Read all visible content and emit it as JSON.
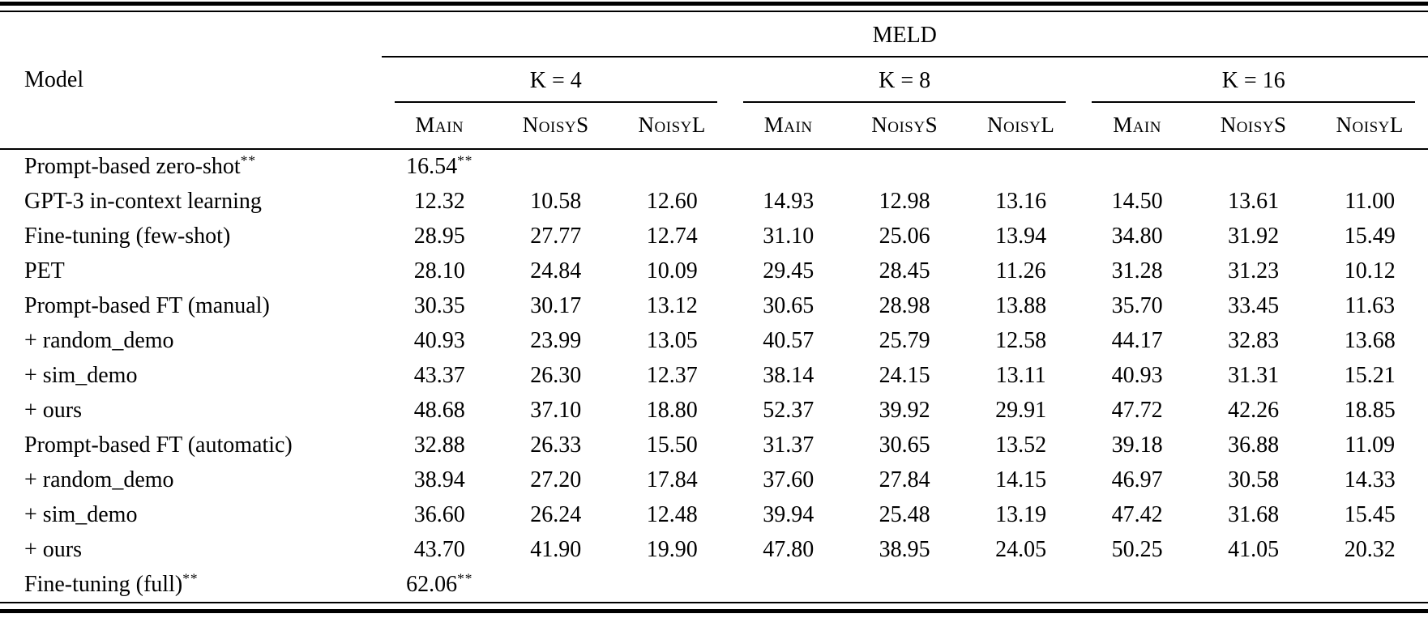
{
  "colors": {
    "background": "#ffffff",
    "text": "#000000",
    "rule": "#000000"
  },
  "table": {
    "dataset": "MELD",
    "model_header": "Model",
    "groups": [
      {
        "label": "K = 4"
      },
      {
        "label": "K = 8"
      },
      {
        "label": "K = 16"
      }
    ],
    "subcolumns": [
      "Main",
      "NoisyS",
      "NoisyL"
    ],
    "rows": [
      {
        "label": "Prompt-based zero-shot**",
        "values": [
          "16.54**",
          "",
          "",
          "",
          "",
          "",
          "",
          "",
          ""
        ]
      },
      {
        "label": "GPT-3 in-context learning",
        "values": [
          "12.32",
          "10.58",
          "12.60",
          "14.93",
          "12.98",
          "13.16",
          "14.50",
          "13.61",
          "11.00"
        ]
      },
      {
        "label": "Fine-tuning (few-shot)",
        "values": [
          "28.95",
          "27.77",
          "12.74",
          "31.10",
          "25.06",
          "13.94",
          "34.80",
          "31.92",
          "15.49"
        ],
        "rule_after": "solid"
      },
      {
        "label": "PET",
        "values": [
          "28.10",
          "24.84",
          "10.09",
          "29.45",
          "28.45",
          "11.26",
          "31.28",
          "31.23",
          "10.12"
        ]
      },
      {
        "label": "Prompt-based FT (manual)",
        "values": [
          "30.35",
          "30.17",
          "13.12",
          "30.65",
          "28.98",
          "13.88",
          "35.70",
          "33.45",
          "11.63"
        ]
      },
      {
        "label": "+ random_demo",
        "values": [
          "40.93",
          "23.99",
          "13.05",
          "40.57",
          "25.79",
          "12.58",
          "44.17",
          "32.83",
          "13.68"
        ]
      },
      {
        "label": "+ sim_demo",
        "values": [
          "43.37",
          "26.30",
          "12.37",
          "38.14",
          "24.15",
          "13.11",
          "40.93",
          "31.31",
          "15.21"
        ]
      },
      {
        "label": "+ ours",
        "values": [
          "48.68",
          "37.10",
          "18.80",
          "52.37",
          "39.92",
          "29.91",
          "47.72",
          "42.26",
          "18.85"
        ],
        "rule_after": "dashed"
      },
      {
        "label": "Prompt-based FT (automatic)",
        "values": [
          "32.88",
          "26.33",
          "15.50",
          "31.37",
          "30.65",
          "13.52",
          "39.18",
          "36.88",
          "11.09"
        ]
      },
      {
        "label": "+ random_demo",
        "values": [
          "38.94",
          "27.20",
          "17.84",
          "37.60",
          "27.84",
          "14.15",
          "46.97",
          "30.58",
          "14.33"
        ]
      },
      {
        "label": "+ sim_demo",
        "values": [
          "36.60",
          "26.24",
          "12.48",
          "39.94",
          "25.48",
          "13.19",
          "47.42",
          "31.68",
          "15.45"
        ]
      },
      {
        "label": "+ ours",
        "values": [
          "43.70",
          "41.90",
          "19.90",
          "47.80",
          "38.95",
          "24.05",
          "50.25",
          "41.05",
          "20.32"
        ],
        "rule_after": "solid"
      },
      {
        "label": "Fine-tuning (full)**",
        "values": [
          "62.06**",
          "",
          "",
          "",
          "",
          "",
          "",
          "",
          ""
        ]
      }
    ]
  }
}
